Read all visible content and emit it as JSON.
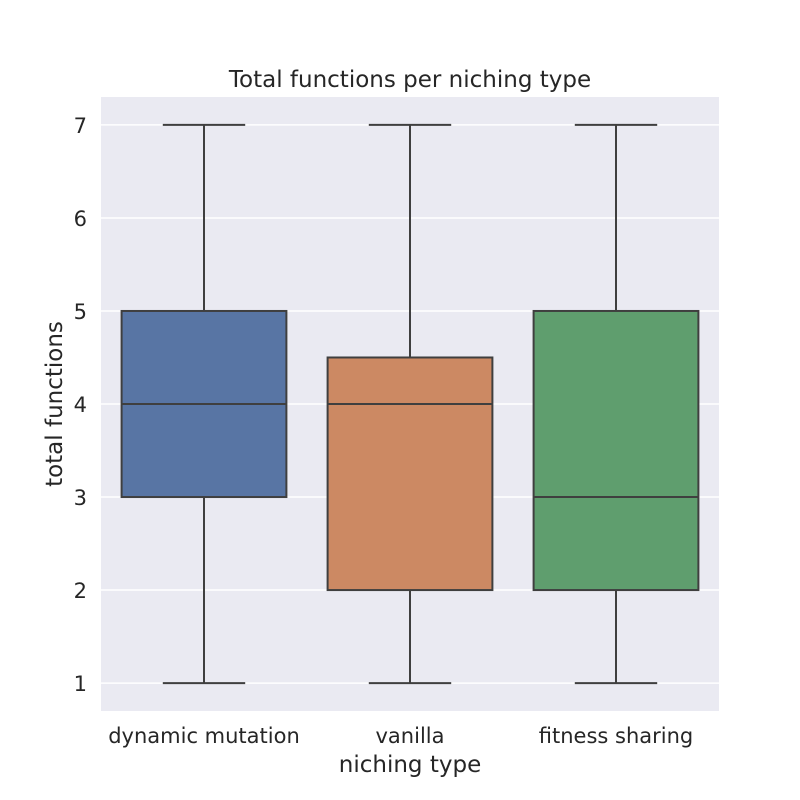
{
  "chart_data": {
    "type": "box",
    "title": "Total functions per niching type",
    "xlabel": "niching type",
    "ylabel": "total functions",
    "categories": [
      "dynamic mutation",
      "vanilla",
      "fitness sharing"
    ],
    "series": [
      {
        "category": "dynamic mutation",
        "min": 1,
        "q1": 3,
        "median": 4,
        "q3": 5,
        "max": 7,
        "color": "#5875a4"
      },
      {
        "category": "vanilla",
        "min": 1,
        "q1": 2,
        "median": 4,
        "q3": 4.5,
        "max": 7,
        "color": "#cc8963"
      },
      {
        "category": "fitness sharing",
        "min": 1,
        "q1": 2,
        "median": 3,
        "q3": 5,
        "max": 7,
        "color": "#5f9e6e"
      }
    ],
    "yticks": [
      1,
      2,
      3,
      4,
      5,
      6,
      7
    ],
    "ylim": [
      0.7,
      7.3
    ],
    "grid": true,
    "background_color": "#eaeaf2",
    "line_color": "#3f3f3f"
  }
}
